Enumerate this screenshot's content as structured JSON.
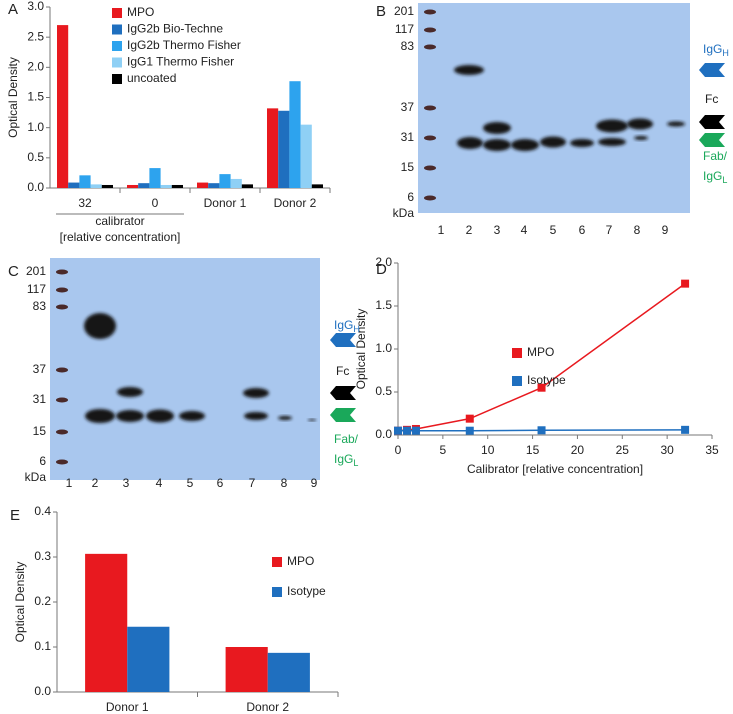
{
  "chart_data": [
    {
      "type": "bar",
      "panel_label": "A",
      "y_label": "Optical Density",
      "categories": [
        "32",
        "0",
        "Donor 1",
        "Donor 2"
      ],
      "group_label": [
        "calibrator",
        "[relative concentration]"
      ],
      "series": [
        {
          "name": "MPO",
          "color": "#e8191f",
          "values": [
            2.7,
            0.05,
            0.09,
            1.32
          ]
        },
        {
          "name": "IgG2b Bio-Techne",
          "color": "#1f6fbf",
          "values": [
            0.09,
            0.08,
            0.08,
            1.28
          ]
        },
        {
          "name": "IgG2b Thermo Fisher",
          "color": "#2da3ee",
          "values": [
            0.21,
            0.33,
            0.23,
            1.77
          ]
        },
        {
          "name": "IgG1 Thermo Fisher",
          "color": "#8fd0f5",
          "values": [
            0.06,
            0.05,
            0.15,
            1.05
          ]
        },
        {
          "name": "uncoated",
          "color": "#000000",
          "values": [
            0.05,
            0.05,
            0.06,
            0.06
          ]
        }
      ],
      "ylim": [
        0,
        3
      ],
      "yticks": [
        {
          "value": 0,
          "label": "0.0"
        },
        0.5,
        {
          "value": 1,
          "label": "1.0"
        },
        1.5,
        {
          "value": 2,
          "label": "2.0"
        },
        2.5,
        {
          "value": 3,
          "label": "3.0"
        }
      ]
    },
    {
      "type": "scatter",
      "panel_label": "D",
      "y_label": "Optical Density",
      "x_label": "Calibrator [relative concentration]",
      "series": [
        {
          "name": "MPO",
          "color": "#e8191f",
          "x": [
            0,
            1,
            2,
            8,
            16,
            32
          ],
          "values": [
            0.05,
            0.06,
            0.07,
            0.19,
            0.55,
            1.76
          ]
        },
        {
          "name": "Isotype",
          "color": "#1f6fbf",
          "x": [
            0,
            1,
            2,
            8,
            16,
            32
          ],
          "values": [
            0.05,
            0.05,
            0.05,
            0.05,
            0.055,
            0.06
          ]
        }
      ],
      "xlim": [
        0,
        35
      ],
      "xticks": [
        0,
        5,
        10,
        15,
        20,
        25,
        30,
        35
      ],
      "ylim": [
        0,
        2
      ],
      "yticks": [
        {
          "value": 0,
          "label": "0.0"
        },
        0.5,
        {
          "value": 1,
          "label": "1.0"
        },
        1.5,
        {
          "value": 2,
          "label": "2.0"
        }
      ]
    },
    {
      "type": "bar",
      "panel_label": "E",
      "y_label": "Optical Density",
      "categories": [
        "Donor 1",
        "Donor 2"
      ],
      "series": [
        {
          "name": "MPO",
          "color": "#e8191f",
          "values": [
            0.307,
            0.1
          ]
        },
        {
          "name": "Isotype",
          "color": "#1f6fbf",
          "values": [
            0.145,
            0.087
          ]
        }
      ],
      "ylim": [
        0,
        0.4
      ],
      "yticks": [
        {
          "value": 0,
          "label": "0.0"
        },
        0.1,
        0.2,
        0.3,
        0.4
      ]
    }
  ],
  "blots": [
    {
      "panel_label": "B",
      "markers": [
        "201",
        "117",
        "83",
        "37",
        "31",
        "15",
        "6"
      ],
      "unit": "kDa",
      "lanes": [
        "1",
        "2",
        "3",
        "4",
        "5",
        "6",
        "7",
        "8",
        "9"
      ],
      "heavy": {
        "text": "IgG",
        "sub": "H"
      },
      "fc": "Fc",
      "fab": "Fab/",
      "light": {
        "text": "IgG",
        "sub": "L"
      }
    },
    {
      "panel_label": "C",
      "markers": [
        "201",
        "117",
        "83",
        "37",
        "31",
        "15",
        "6"
      ],
      "unit": "kDa",
      "lanes": [
        "1",
        "2",
        "3",
        "4",
        "5",
        "6",
        "7",
        "8",
        "9"
      ],
      "heavy": {
        "text": "IgG",
        "sub": "H"
      },
      "fc": "Fc",
      "fab": "Fab/",
      "light": {
        "text": "IgG",
        "sub": "L"
      }
    }
  ]
}
